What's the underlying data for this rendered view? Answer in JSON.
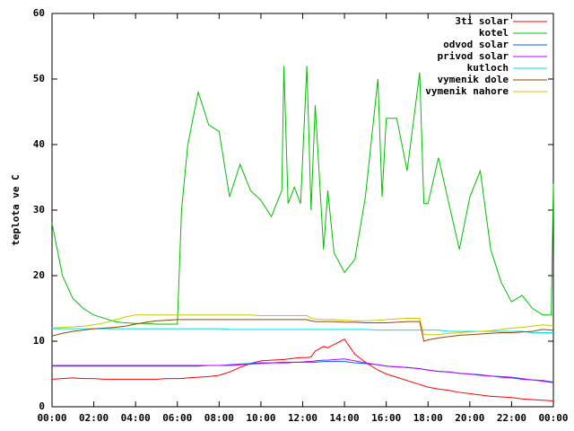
{
  "chart_data": {
    "type": "line",
    "ylabel": "teplota ve C",
    "x": [
      0,
      0.5,
      1,
      1.5,
      2,
      2.5,
      3,
      3.5,
      4,
      4.5,
      5,
      5.5,
      6,
      6.2,
      6.5,
      7,
      7.5,
      8,
      8.5,
      9,
      9.5,
      10,
      10.5,
      11,
      11.1,
      11.3,
      11.6,
      11.9,
      12.2,
      12.4,
      12.6,
      13,
      13.2,
      13.5,
      14,
      14.5,
      15,
      15.6,
      15.8,
      16,
      16.5,
      17,
      17.6,
      17.8,
      18,
      18.5,
      19,
      19.5,
      20,
      20.5,
      21,
      21.5,
      22,
      22.5,
      23,
      23.5,
      23.9,
      24
    ],
    "xlim": [
      0,
      24
    ],
    "xticks": [
      {
        "value": 0,
        "label": "00:00"
      },
      {
        "value": 2,
        "label": "02:00"
      },
      {
        "value": 4,
        "label": "04:00"
      },
      {
        "value": 6,
        "label": "06:00"
      },
      {
        "value": 8,
        "label": "08:00"
      },
      {
        "value": 10,
        "label": "10:00"
      },
      {
        "value": 12,
        "label": "12:00"
      },
      {
        "value": 14,
        "label": "14:00"
      },
      {
        "value": 16,
        "label": "16:00"
      },
      {
        "value": 18,
        "label": "18:00"
      },
      {
        "value": 20,
        "label": "20:00"
      },
      {
        "value": 22,
        "label": "22:00"
      },
      {
        "value": 24,
        "label": "00:00"
      }
    ],
    "ylim": [
      0,
      60
    ],
    "yticks": [
      0,
      10,
      20,
      30,
      40,
      50,
      60
    ],
    "legend": "top right",
    "series": [
      {
        "name": "3ti solar",
        "color": "#ff0000",
        "values": [
          4.2,
          4.3,
          4.4,
          4.3,
          4.3,
          4.2,
          4.2,
          4.2,
          4.2,
          4.2,
          4.2,
          4.3,
          4.3,
          4.3,
          4.4,
          4.5,
          4.6,
          4.8,
          5.3,
          6,
          6.6,
          7,
          7.1,
          7.2,
          7.2,
          7.3,
          7.4,
          7.5,
          7.5,
          7.6,
          8.5,
          9.2,
          9,
          9.5,
          10.3,
          8,
          6.8,
          5.6,
          5.3,
          5,
          4.5,
          4,
          3.4,
          3.2,
          3,
          2.7,
          2.5,
          2.2,
          2,
          1.8,
          1.6,
          1.5,
          1.4,
          1.2,
          1.1,
          1,
          0.9,
          0.8
        ]
      },
      {
        "name": "kotel",
        "color": "#00c000",
        "values": [
          28,
          20,
          16.5,
          15,
          14,
          13.5,
          13,
          12.8,
          12.7,
          12.7,
          12.6,
          12.6,
          12.6,
          30,
          40,
          48,
          43,
          42,
          32,
          37,
          33,
          31.5,
          29,
          33,
          52,
          31,
          33.5,
          31,
          52,
          30,
          46,
          24,
          33,
          23.5,
          20.5,
          22.5,
          32,
          50,
          32,
          44,
          44,
          36,
          51,
          31,
          31,
          38,
          31,
          24,
          32,
          36,
          24,
          19,
          16,
          17,
          15,
          14,
          14,
          34
        ]
      },
      {
        "name": "odvod solar",
        "color": "#0060ff",
        "values": [
          6.2,
          6.2,
          6.2,
          6.2,
          6.2,
          6.2,
          6.2,
          6.2,
          6.2,
          6.2,
          6.2,
          6.2,
          6.2,
          6.2,
          6.2,
          6.2,
          6.3,
          6.3,
          6.4,
          6.5,
          6.6,
          6.7,
          6.7,
          6.8,
          6.8,
          6.8,
          6.8,
          6.8,
          6.8,
          6.8,
          6.8,
          6.9,
          6.9,
          6.9,
          6.9,
          6.7,
          6.6,
          6.4,
          6.3,
          6.2,
          6.1,
          6,
          5.8,
          5.7,
          5.6,
          5.4,
          5.3,
          5.1,
          5,
          4.9,
          4.7,
          4.6,
          4.5,
          4.3,
          4.1,
          4,
          3.8,
          3.8
        ]
      },
      {
        "name": "privod solar",
        "color": "#c000ff",
        "values": [
          6.3,
          6.3,
          6.3,
          6.3,
          6.3,
          6.3,
          6.3,
          6.3,
          6.3,
          6.3,
          6.3,
          6.3,
          6.3,
          6.3,
          6.3,
          6.3,
          6.3,
          6.3,
          6.3,
          6.4,
          6.5,
          6.6,
          6.7,
          6.7,
          6.7,
          6.7,
          6.8,
          6.8,
          6.9,
          6.9,
          7,
          7.1,
          7.1,
          7.2,
          7.3,
          7,
          6.7,
          6.4,
          6.3,
          6.2,
          6.1,
          6,
          5.8,
          5.7,
          5.6,
          5.4,
          5.3,
          5.1,
          5,
          4.8,
          4.7,
          4.5,
          4.4,
          4.2,
          4.1,
          3.9,
          3.7,
          3.7
        ]
      },
      {
        "name": "kutloch",
        "color": "#00e0e0",
        "values": [
          11.9,
          11.9,
          11.9,
          11.9,
          11.9,
          11.9,
          11.9,
          11.9,
          11.9,
          11.9,
          11.9,
          11.9,
          11.9,
          11.9,
          11.9,
          11.9,
          11.9,
          11.9,
          11.8,
          11.8,
          11.8,
          11.8,
          11.8,
          11.8,
          11.8,
          11.8,
          11.8,
          11.8,
          11.8,
          11.8,
          11.8,
          11.8,
          11.8,
          11.8,
          11.8,
          11.8,
          11.8,
          11.7,
          11.7,
          11.7,
          11.7,
          11.7,
          11.7,
          11.7,
          11.7,
          11.7,
          11.5,
          11.5,
          11.5,
          11.5,
          11.5,
          11.5,
          11.5,
          11.5,
          11.3,
          11.3,
          11.3,
          11.3
        ]
      },
      {
        "name": "vymenik dole",
        "color": "#a04000",
        "values": [
          10.8,
          11.2,
          11.5,
          11.7,
          11.9,
          12,
          12.1,
          12.3,
          12.6,
          12.9,
          13.1,
          13.2,
          13.3,
          13.3,
          13.3,
          13.3,
          13.3,
          13.3,
          13.3,
          13.3,
          13.3,
          13.3,
          13.3,
          13.3,
          13.3,
          13.3,
          13.3,
          13.3,
          13.3,
          13.1,
          13,
          13,
          13,
          13,
          12.9,
          12.9,
          12.8,
          12.8,
          12.8,
          12.8,
          12.9,
          13,
          13,
          10,
          10.2,
          10.5,
          10.7,
          10.9,
          11,
          11.1,
          11.2,
          11.3,
          11.3,
          11.4,
          11.5,
          11.8,
          11.7,
          11.6
        ]
      },
      {
        "name": "vymenik nahore",
        "color": "#c8c800",
        "values": [
          12,
          12.1,
          12.2,
          12.3,
          12.5,
          12.8,
          13.2,
          13.7,
          14,
          14,
          14,
          14,
          14,
          14,
          14,
          14,
          14,
          14,
          14,
          14,
          14,
          13.9,
          13.9,
          13.9,
          13.9,
          13.9,
          13.9,
          13.9,
          13.9,
          13.5,
          13.4,
          13.3,
          13.3,
          13.3,
          13.2,
          13.1,
          13.1,
          13.2,
          13.2,
          13.3,
          13.4,
          13.5,
          13.5,
          11,
          11,
          11,
          11.2,
          11.3,
          11.4,
          11.5,
          11.6,
          11.8,
          12,
          12.1,
          12.3,
          12.5,
          12.4,
          12.3
        ]
      }
    ]
  }
}
